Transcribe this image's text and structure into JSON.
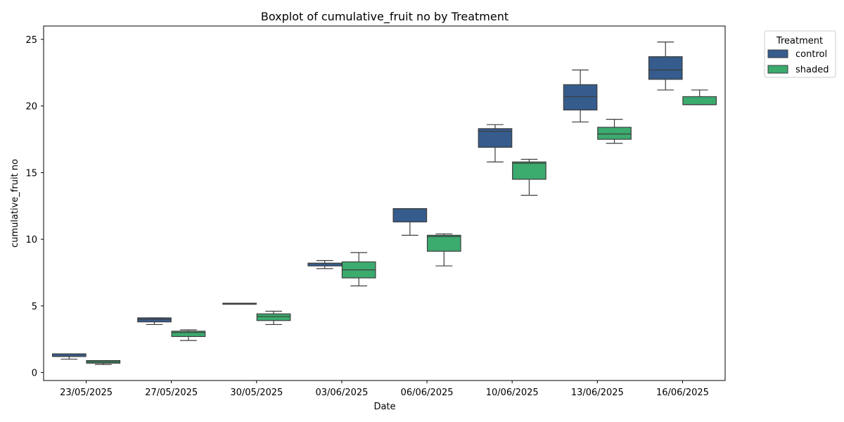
{
  "chart_data": {
    "type": "box",
    "title": "Boxplot of cumulative_fruit no by Treatment",
    "xlabel": "Date",
    "ylabel": "cumulative_fruit no",
    "ylim": [
      -0.6,
      26
    ],
    "yticks": [
      0,
      5,
      10,
      15,
      20,
      25
    ],
    "grid": false,
    "legend": {
      "title": "Treatment",
      "placement": "outside-top-right"
    },
    "categories": [
      "23/05/2025",
      "27/05/2025",
      "30/05/2025",
      "03/06/2025",
      "06/06/2025",
      "10/06/2025",
      "13/06/2025",
      "16/06/2025"
    ],
    "series": [
      {
        "name": "control",
        "color": "#365c8d",
        "boxes": [
          {
            "whislo": 1.0,
            "q1": 1.2,
            "med": 1.4,
            "q3": 1.4,
            "whishi": 1.4
          },
          {
            "whislo": 3.6,
            "q1": 3.8,
            "med": 4.0,
            "q3": 4.1,
            "whishi": 4.1
          },
          {
            "whislo": 5.2,
            "q1": 5.2,
            "med": 5.2,
            "q3": 5.2,
            "whishi": 5.2
          },
          {
            "whislo": 7.8,
            "q1": 8.0,
            "med": 8.2,
            "q3": 8.2,
            "whishi": 8.4
          },
          {
            "whislo": 10.3,
            "q1": 11.3,
            "med": 12.3,
            "q3": 12.3,
            "whishi": 12.3
          },
          {
            "whislo": 15.8,
            "q1": 16.9,
            "med": 18.1,
            "q3": 18.3,
            "whishi": 18.6
          },
          {
            "whislo": 18.8,
            "q1": 19.7,
            "med": 20.7,
            "q3": 21.6,
            "whishi": 22.7
          },
          {
            "whislo": 21.2,
            "q1": 22.0,
            "med": 22.7,
            "q3": 23.7,
            "whishi": 24.8
          }
        ]
      },
      {
        "name": "shaded",
        "color": "#3bab6e",
        "boxes": [
          {
            "whislo": 0.6,
            "q1": 0.7,
            "med": 0.8,
            "q3": 0.9,
            "whishi": 0.9
          },
          {
            "whislo": 2.4,
            "q1": 2.7,
            "med": 3.0,
            "q3": 3.1,
            "whishi": 3.2
          },
          {
            "whislo": 3.6,
            "q1": 3.9,
            "med": 4.2,
            "q3": 4.4,
            "whishi": 4.6
          },
          {
            "whislo": 6.5,
            "q1": 7.1,
            "med": 7.7,
            "q3": 8.3,
            "whishi": 9.0
          },
          {
            "whislo": 8.0,
            "q1": 9.1,
            "med": 10.2,
            "q3": 10.3,
            "whishi": 10.4
          },
          {
            "whislo": 13.3,
            "q1": 14.5,
            "med": 15.7,
            "q3": 15.8,
            "whishi": 16.0
          },
          {
            "whislo": 17.2,
            "q1": 17.5,
            "med": 17.9,
            "q3": 18.4,
            "whishi": 19.0
          },
          {
            "whislo": 20.1,
            "q1": 20.1,
            "med": 20.1,
            "q3": 20.7,
            "whishi": 21.2
          }
        ]
      }
    ]
  }
}
